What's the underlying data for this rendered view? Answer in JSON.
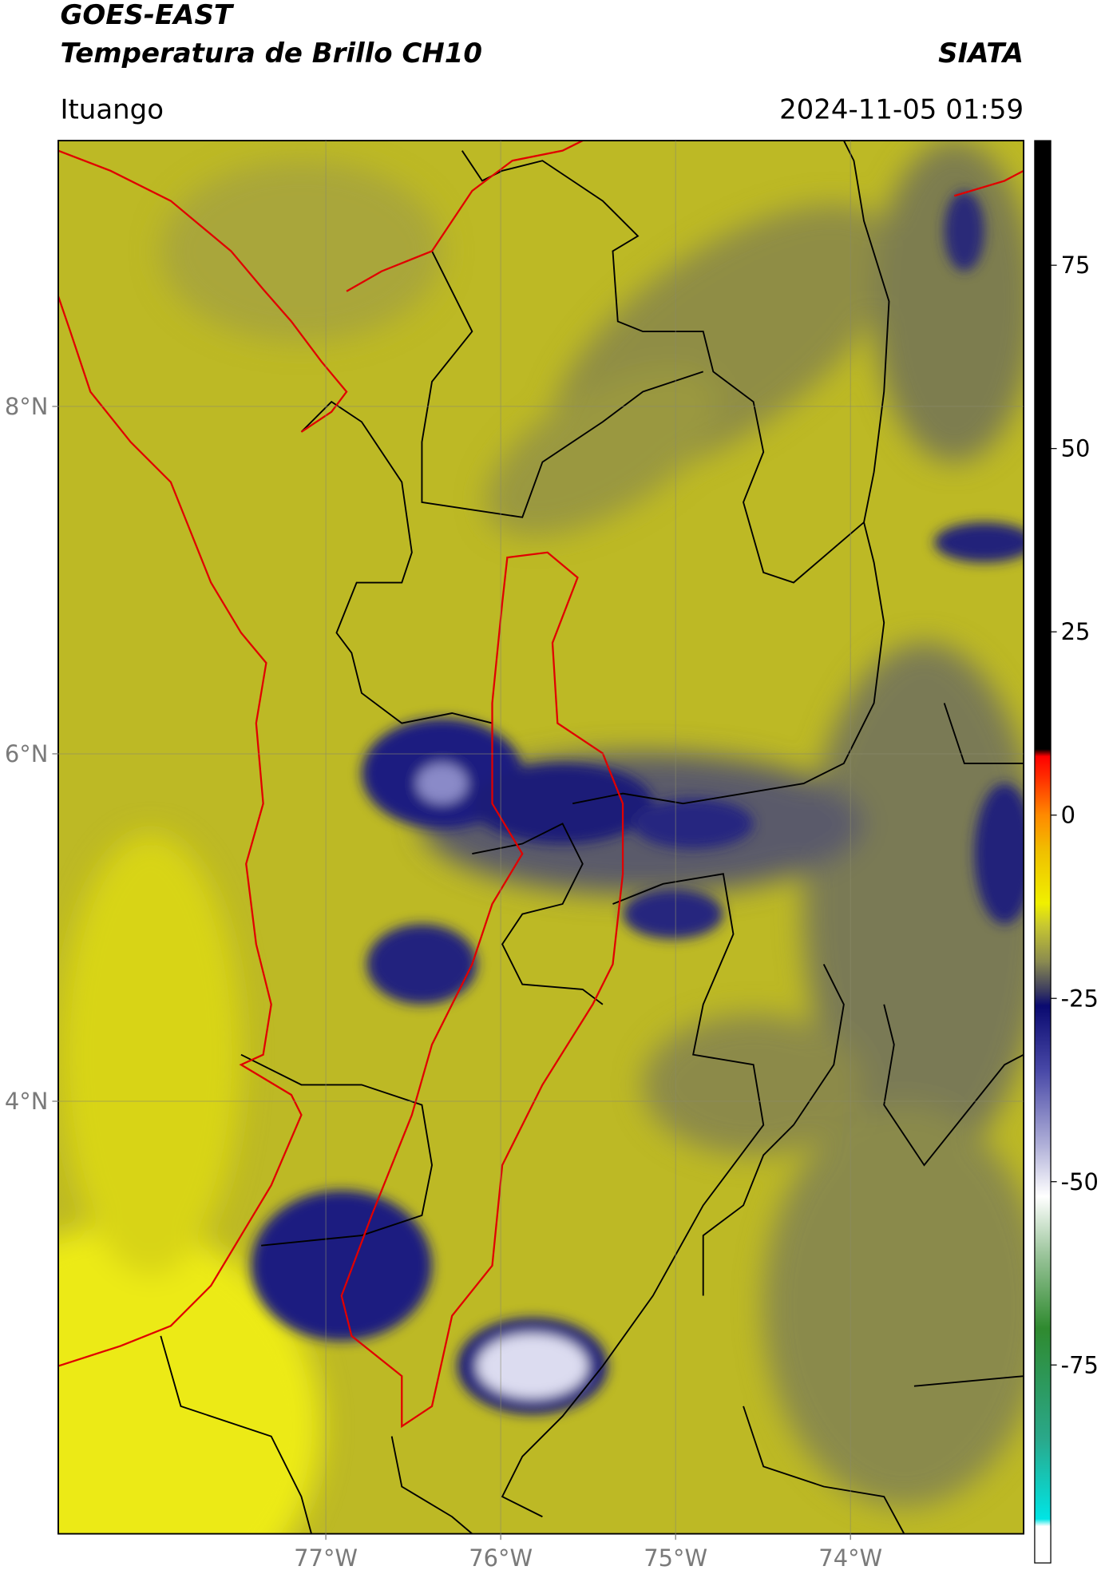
{
  "header": {
    "title_line1": "GOES-EAST",
    "title_line2": "Temperatura de Brillo CH10",
    "source": "SIATA",
    "location": "Ituango",
    "timestamp": "2024-11-05 01:59"
  },
  "chart_data": {
    "type": "map",
    "xlim": [
      -78.53,
      -73.01
    ],
    "ylim": [
      1.51,
      9.53
    ],
    "xticks": [
      {
        "value": -77,
        "label": "77°W"
      },
      {
        "value": -76,
        "label": "76°W"
      },
      {
        "value": -75,
        "label": "75°W"
      },
      {
        "value": -74,
        "label": "74°W"
      }
    ],
    "yticks": [
      {
        "value": 4,
        "label": "4°N"
      },
      {
        "value": 6,
        "label": "6°N"
      },
      {
        "value": 8,
        "label": "8°N"
      }
    ],
    "grid": true,
    "colorbar": {
      "lim": [
        -102,
        92
      ],
      "ticks": [
        -75,
        -50,
        -25,
        0,
        25,
        50,
        75
      ],
      "stops": [
        {
          "value": -102,
          "color": "#ffffff"
        },
        {
          "value": -97,
          "color": "#ffffff"
        },
        {
          "value": -96,
          "color": "#00e5e5"
        },
        {
          "value": -85,
          "color": "#2aa88a"
        },
        {
          "value": -70,
          "color": "#2f8a2f"
        },
        {
          "value": -60,
          "color": "#9ac49a"
        },
        {
          "value": -52,
          "color": "#ffffff"
        },
        {
          "value": -45,
          "color": "#b0b0d8"
        },
        {
          "value": -35,
          "color": "#4a4aa8"
        },
        {
          "value": -26,
          "color": "#0a0a70"
        },
        {
          "value": -24,
          "color": "#3a3a60"
        },
        {
          "value": -20,
          "color": "#8a8a50"
        },
        {
          "value": -15,
          "color": "#c8c830"
        },
        {
          "value": -12,
          "color": "#f0f000"
        },
        {
          "value": -5,
          "color": "#f0c000"
        },
        {
          "value": 0,
          "color": "#ff8a00"
        },
        {
          "value": 5,
          "color": "#ff3000"
        },
        {
          "value": 8,
          "color": "#ff0000"
        },
        {
          "value": 9,
          "color": "#000000"
        },
        {
          "value": 92,
          "color": "#000000"
        }
      ]
    }
  }
}
